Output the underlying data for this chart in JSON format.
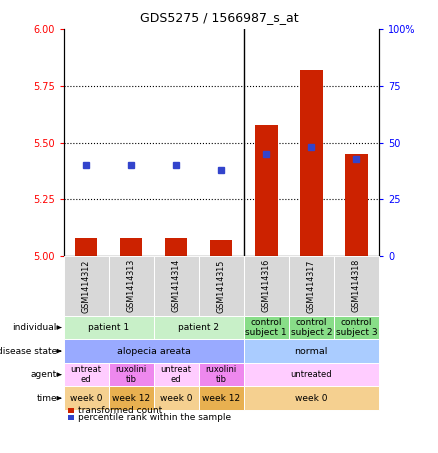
{
  "title": "GDS5275 / 1566987_s_at",
  "samples": [
    "GSM1414312",
    "GSM1414313",
    "GSM1414314",
    "GSM1414315",
    "GSM1414316",
    "GSM1414317",
    "GSM1414318"
  ],
  "red_values": [
    5.08,
    5.08,
    5.08,
    5.07,
    5.58,
    5.82,
    5.45
  ],
  "blue_values": [
    40,
    40,
    40,
    38,
    45,
    48,
    43
  ],
  "ylim_left": [
    5.0,
    6.0
  ],
  "ylim_right": [
    0,
    100
  ],
  "yticks_left": [
    5.0,
    5.25,
    5.5,
    5.75,
    6.0
  ],
  "yticks_right": [
    0,
    25,
    50,
    75,
    100
  ],
  "red_color": "#cc2200",
  "blue_color": "#3344cc",
  "bar_width": 0.5,
  "separator_col": 3.5,
  "ind_data": [
    [
      0,
      2,
      "patient 1",
      "#c8f0c8"
    ],
    [
      2,
      4,
      "patient 2",
      "#c8f0c8"
    ],
    [
      4,
      5,
      "control\nsubject 1",
      "#88dd88"
    ],
    [
      5,
      6,
      "control\nsubject 2",
      "#88dd88"
    ],
    [
      6,
      7,
      "control\nsubject 3",
      "#88dd88"
    ]
  ],
  "dis_data": [
    [
      0,
      4,
      "alopecia areata",
      "#99aaff"
    ],
    [
      4,
      7,
      "normal",
      "#aaccff"
    ]
  ],
  "agent_data": [
    [
      0,
      1,
      "untreat\ned",
      "#ffccff"
    ],
    [
      1,
      2,
      "ruxolini\ntib",
      "#ee88ee"
    ],
    [
      2,
      3,
      "untreat\ned",
      "#ffccff"
    ],
    [
      3,
      4,
      "ruxolini\ntib",
      "#ee88ee"
    ],
    [
      4,
      7,
      "untreated",
      "#ffccff"
    ]
  ],
  "time_data": [
    [
      0,
      1,
      "week 0",
      "#f5d090"
    ],
    [
      1,
      2,
      "week 12",
      "#e8b050"
    ],
    [
      2,
      3,
      "week 0",
      "#f5d090"
    ],
    [
      3,
      4,
      "week 12",
      "#e8b050"
    ],
    [
      4,
      7,
      "week 0",
      "#f5d090"
    ]
  ],
  "row_labels": [
    "individual",
    "disease state",
    "agent",
    "time"
  ],
  "gsm_bg": "#d8d8d8",
  "legend_red_label": "transformed count",
  "legend_blue_label": "percentile rank within the sample"
}
